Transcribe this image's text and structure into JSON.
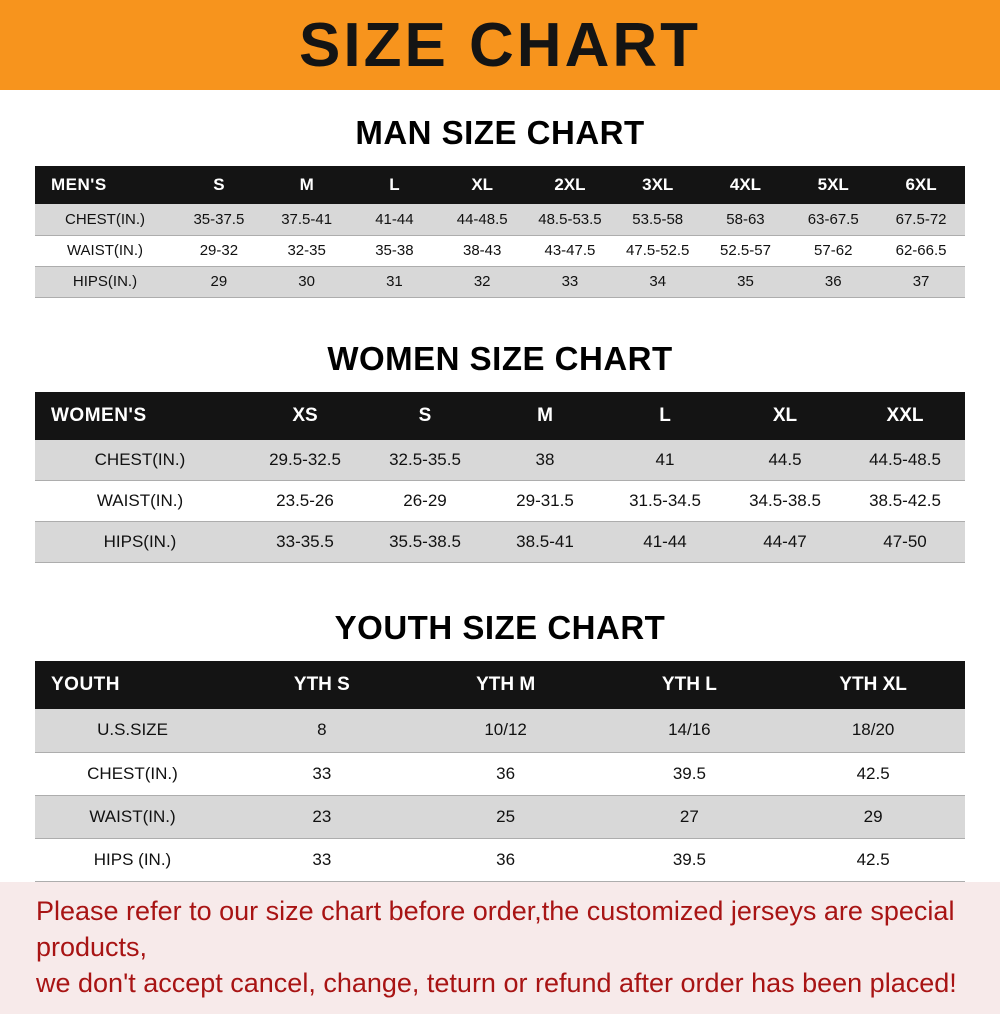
{
  "banner": {
    "title": "SIZE CHART"
  },
  "colors": {
    "banner_bg": "#f7941d",
    "header_bg": "#141414",
    "row_alt": "#d8d8d8",
    "footer_bg": "#f7eaea",
    "footer_text": "#a81414"
  },
  "sections": [
    {
      "heading": "MAN SIZE CHART",
      "table": {
        "header": [
          "MEN'S",
          "S",
          "M",
          "L",
          "XL",
          "2XL",
          "3XL",
          "4XL",
          "5XL",
          "6XL"
        ],
        "rows": [
          {
            "label": "CHEST(IN.)",
            "values": [
              "35-37.5",
              "37.5-41",
              "41-44",
              "44-48.5",
              "48.5-53.5",
              "53.5-58",
              "58-63",
              "63-67.5",
              "67.5-72"
            ]
          },
          {
            "label": "WAIST(IN.)",
            "values": [
              "29-32",
              "32-35",
              "35-38",
              "38-43",
              "43-47.5",
              "47.5-52.5",
              "52.5-57",
              "57-62",
              "62-66.5"
            ]
          },
          {
            "label": "HIPS(IN.)",
            "values": [
              "29",
              "30",
              "31",
              "32",
              "33",
              "34",
              "35",
              "36",
              "37"
            ]
          }
        ]
      }
    },
    {
      "heading": "WOMEN SIZE CHART",
      "table": {
        "header": [
          "WOMEN'S",
          "XS",
          "S",
          "M",
          "L",
          "XL",
          "XXL"
        ],
        "rows": [
          {
            "label": "CHEST(IN.)",
            "values": [
              "29.5-32.5",
              "32.5-35.5",
              "38",
              "41",
              "44.5",
              "44.5-48.5"
            ]
          },
          {
            "label": "WAIST(IN.)",
            "values": [
              "23.5-26",
              "26-29",
              "29-31.5",
              "31.5-34.5",
              "34.5-38.5",
              "38.5-42.5"
            ]
          },
          {
            "label": "HIPS(IN.)",
            "values": [
              "33-35.5",
              "35.5-38.5",
              "38.5-41",
              "41-44",
              "44-47",
              "47-50"
            ]
          }
        ]
      }
    },
    {
      "heading": "YOUTH SIZE CHART",
      "table": {
        "header": [
          "YOUTH",
          "YTH S",
          "YTH M",
          "YTH L",
          "YTH XL"
        ],
        "rows": [
          {
            "label": "U.S.SIZE",
            "values": [
              "8",
              "10/12",
              "14/16",
              "18/20"
            ]
          },
          {
            "label": "CHEST(IN.)",
            "values": [
              "33",
              "36",
              "39.5",
              "42.5"
            ]
          },
          {
            "label": "WAIST(IN.)",
            "values": [
              "23",
              "25",
              "27",
              "29"
            ]
          },
          {
            "label": "HIPS (IN.)",
            "values": [
              "33",
              "36",
              "39.5",
              "42.5"
            ]
          }
        ]
      }
    }
  ],
  "footer": {
    "lines": [
      "Please refer to our size chart before order,the customized jerseys are special products,",
      "we don't accept cancel, change, teturn or refund after order has been placed!"
    ]
  }
}
